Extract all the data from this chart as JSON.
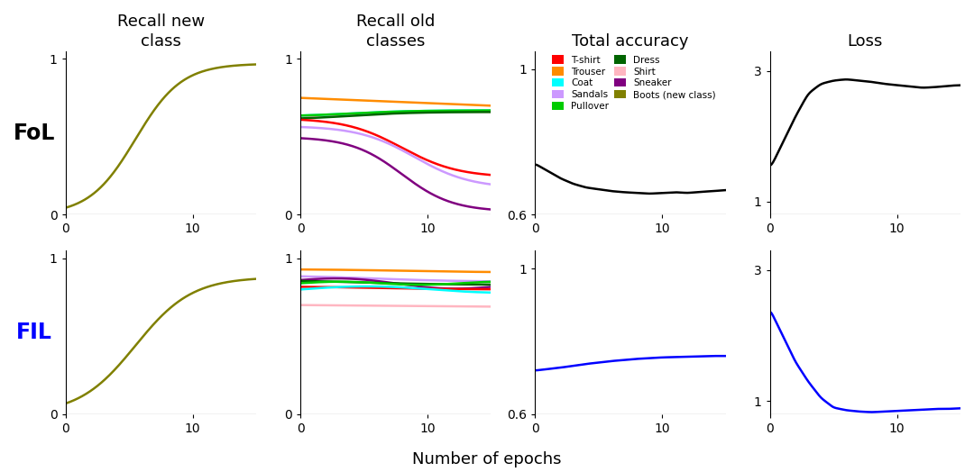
{
  "title_col1": "Recall new\nclass",
  "title_col2": "Recall old\nclasses",
  "title_col3": "Total accuracy",
  "title_col4": "Loss",
  "row1_label": "FoL",
  "row2_label": "FIL",
  "row2_label_color": "#0000FF",
  "xlabel": "Number of epochs",
  "class_colors": {
    "T-shirt": "#FF0000",
    "Trouser": "#FF8C00",
    "Coat": "#00FFFF",
    "Sandals": "#CC99FF",
    "Pullover": "#00CC00",
    "Dress": "#006400",
    "Shirt": "#FFB6C1",
    "Sneaker": "#800080",
    "Boots (new class)": "#808000"
  },
  "legend_order": [
    [
      "T-shirt",
      "Trouser"
    ],
    [
      "Coat",
      "Sandals"
    ],
    [
      "Pullover",
      "Dress"
    ],
    [
      "Shirt",
      "Sneaker"
    ],
    [
      "Boots (new class)",
      ""
    ]
  ],
  "new_class_color": "#808000",
  "epochs": 15,
  "background": "#FFFFFF"
}
